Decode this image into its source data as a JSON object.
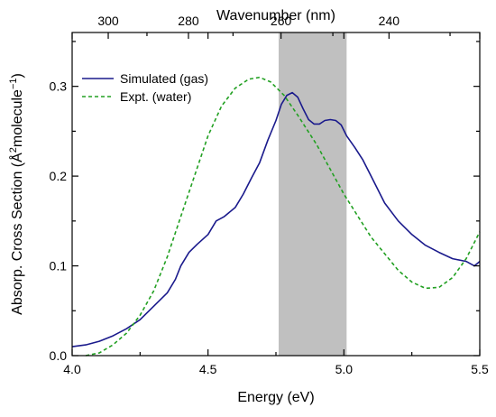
{
  "chart_data": {
    "type": "line",
    "xlabel": "Energy (eV)",
    "ylabel_main": "Absorp. Cross Section (Å",
    "ylabel_sup1": "2",
    "ylabel_mid": "molecule",
    "ylabel_sup2": "−1",
    "ylabel_end": ")",
    "x2label": "Wavenumber (nm)",
    "xlim": [
      4.0,
      5.5
    ],
    "ylim": [
      0.0,
      0.36
    ],
    "x_ticks": [
      {
        "value": 4.0,
        "label": "4.0"
      },
      {
        "value": 4.5,
        "label": "4.5"
      },
      {
        "value": 5.0,
        "label": "5.0"
      },
      {
        "value": 5.5,
        "label": "5.5"
      }
    ],
    "y_ticks": [
      {
        "value": 0.0,
        "label": "0.0"
      },
      {
        "value": 0.1,
        "label": "0.1"
      },
      {
        "value": 0.2,
        "label": "0.2"
      },
      {
        "value": 0.3,
        "label": "0.3"
      }
    ],
    "top_ticks": [
      {
        "label": "300"
      },
      {
        "label": "280"
      },
      {
        "label": "260"
      },
      {
        "label": "240"
      }
    ],
    "top_tick_values_nm": [
      300,
      280,
      260,
      240
    ],
    "shaded_region": {
      "x_start": 4.76,
      "x_end": 5.01,
      "color": "#c0c0c0"
    },
    "legend_position": "top-left",
    "series": [
      {
        "name": "Simulated (gas)",
        "color": "#1a1a8c",
        "style": "solid",
        "points": [
          [
            4.0,
            0.01
          ],
          [
            4.05,
            0.012
          ],
          [
            4.1,
            0.016
          ],
          [
            4.15,
            0.022
          ],
          [
            4.2,
            0.03
          ],
          [
            4.25,
            0.04
          ],
          [
            4.3,
            0.055
          ],
          [
            4.35,
            0.07
          ],
          [
            4.38,
            0.085
          ],
          [
            4.4,
            0.1
          ],
          [
            4.43,
            0.115
          ],
          [
            4.46,
            0.124
          ],
          [
            4.5,
            0.135
          ],
          [
            4.53,
            0.15
          ],
          [
            4.56,
            0.155
          ],
          [
            4.6,
            0.165
          ],
          [
            4.63,
            0.18
          ],
          [
            4.66,
            0.198
          ],
          [
            4.69,
            0.215
          ],
          [
            4.72,
            0.24
          ],
          [
            4.75,
            0.262
          ],
          [
            4.77,
            0.28
          ],
          [
            4.79,
            0.29
          ],
          [
            4.81,
            0.293
          ],
          [
            4.83,
            0.288
          ],
          [
            4.85,
            0.275
          ],
          [
            4.87,
            0.263
          ],
          [
            4.89,
            0.258
          ],
          [
            4.91,
            0.258
          ],
          [
            4.93,
            0.262
          ],
          [
            4.95,
            0.263
          ],
          [
            4.97,
            0.262
          ],
          [
            4.99,
            0.257
          ],
          [
            5.01,
            0.245
          ],
          [
            5.04,
            0.232
          ],
          [
            5.07,
            0.218
          ],
          [
            5.1,
            0.2
          ],
          [
            5.15,
            0.17
          ],
          [
            5.2,
            0.15
          ],
          [
            5.25,
            0.135
          ],
          [
            5.3,
            0.123
          ],
          [
            5.35,
            0.115
          ],
          [
            5.4,
            0.108
          ],
          [
            5.45,
            0.105
          ],
          [
            5.48,
            0.1
          ],
          [
            5.5,
            0.105
          ]
        ]
      },
      {
        "name": "Expt. (water)",
        "color": "#22a022",
        "style": "dashed",
        "points": [
          [
            4.05,
            0.0
          ],
          [
            4.1,
            0.003
          ],
          [
            4.15,
            0.012
          ],
          [
            4.2,
            0.025
          ],
          [
            4.25,
            0.045
          ],
          [
            4.3,
            0.072
          ],
          [
            4.35,
            0.11
          ],
          [
            4.4,
            0.155
          ],
          [
            4.45,
            0.2
          ],
          [
            4.5,
            0.245
          ],
          [
            4.55,
            0.278
          ],
          [
            4.6,
            0.298
          ],
          [
            4.65,
            0.308
          ],
          [
            4.69,
            0.31
          ],
          [
            4.73,
            0.305
          ],
          [
            4.78,
            0.29
          ],
          [
            4.83,
            0.268
          ],
          [
            4.9,
            0.235
          ],
          [
            5.0,
            0.18
          ],
          [
            5.1,
            0.132
          ],
          [
            5.2,
            0.095
          ],
          [
            5.25,
            0.082
          ],
          [
            5.3,
            0.075
          ],
          [
            5.35,
            0.076
          ],
          [
            5.4,
            0.087
          ],
          [
            5.45,
            0.108
          ],
          [
            5.5,
            0.138
          ]
        ]
      }
    ]
  }
}
